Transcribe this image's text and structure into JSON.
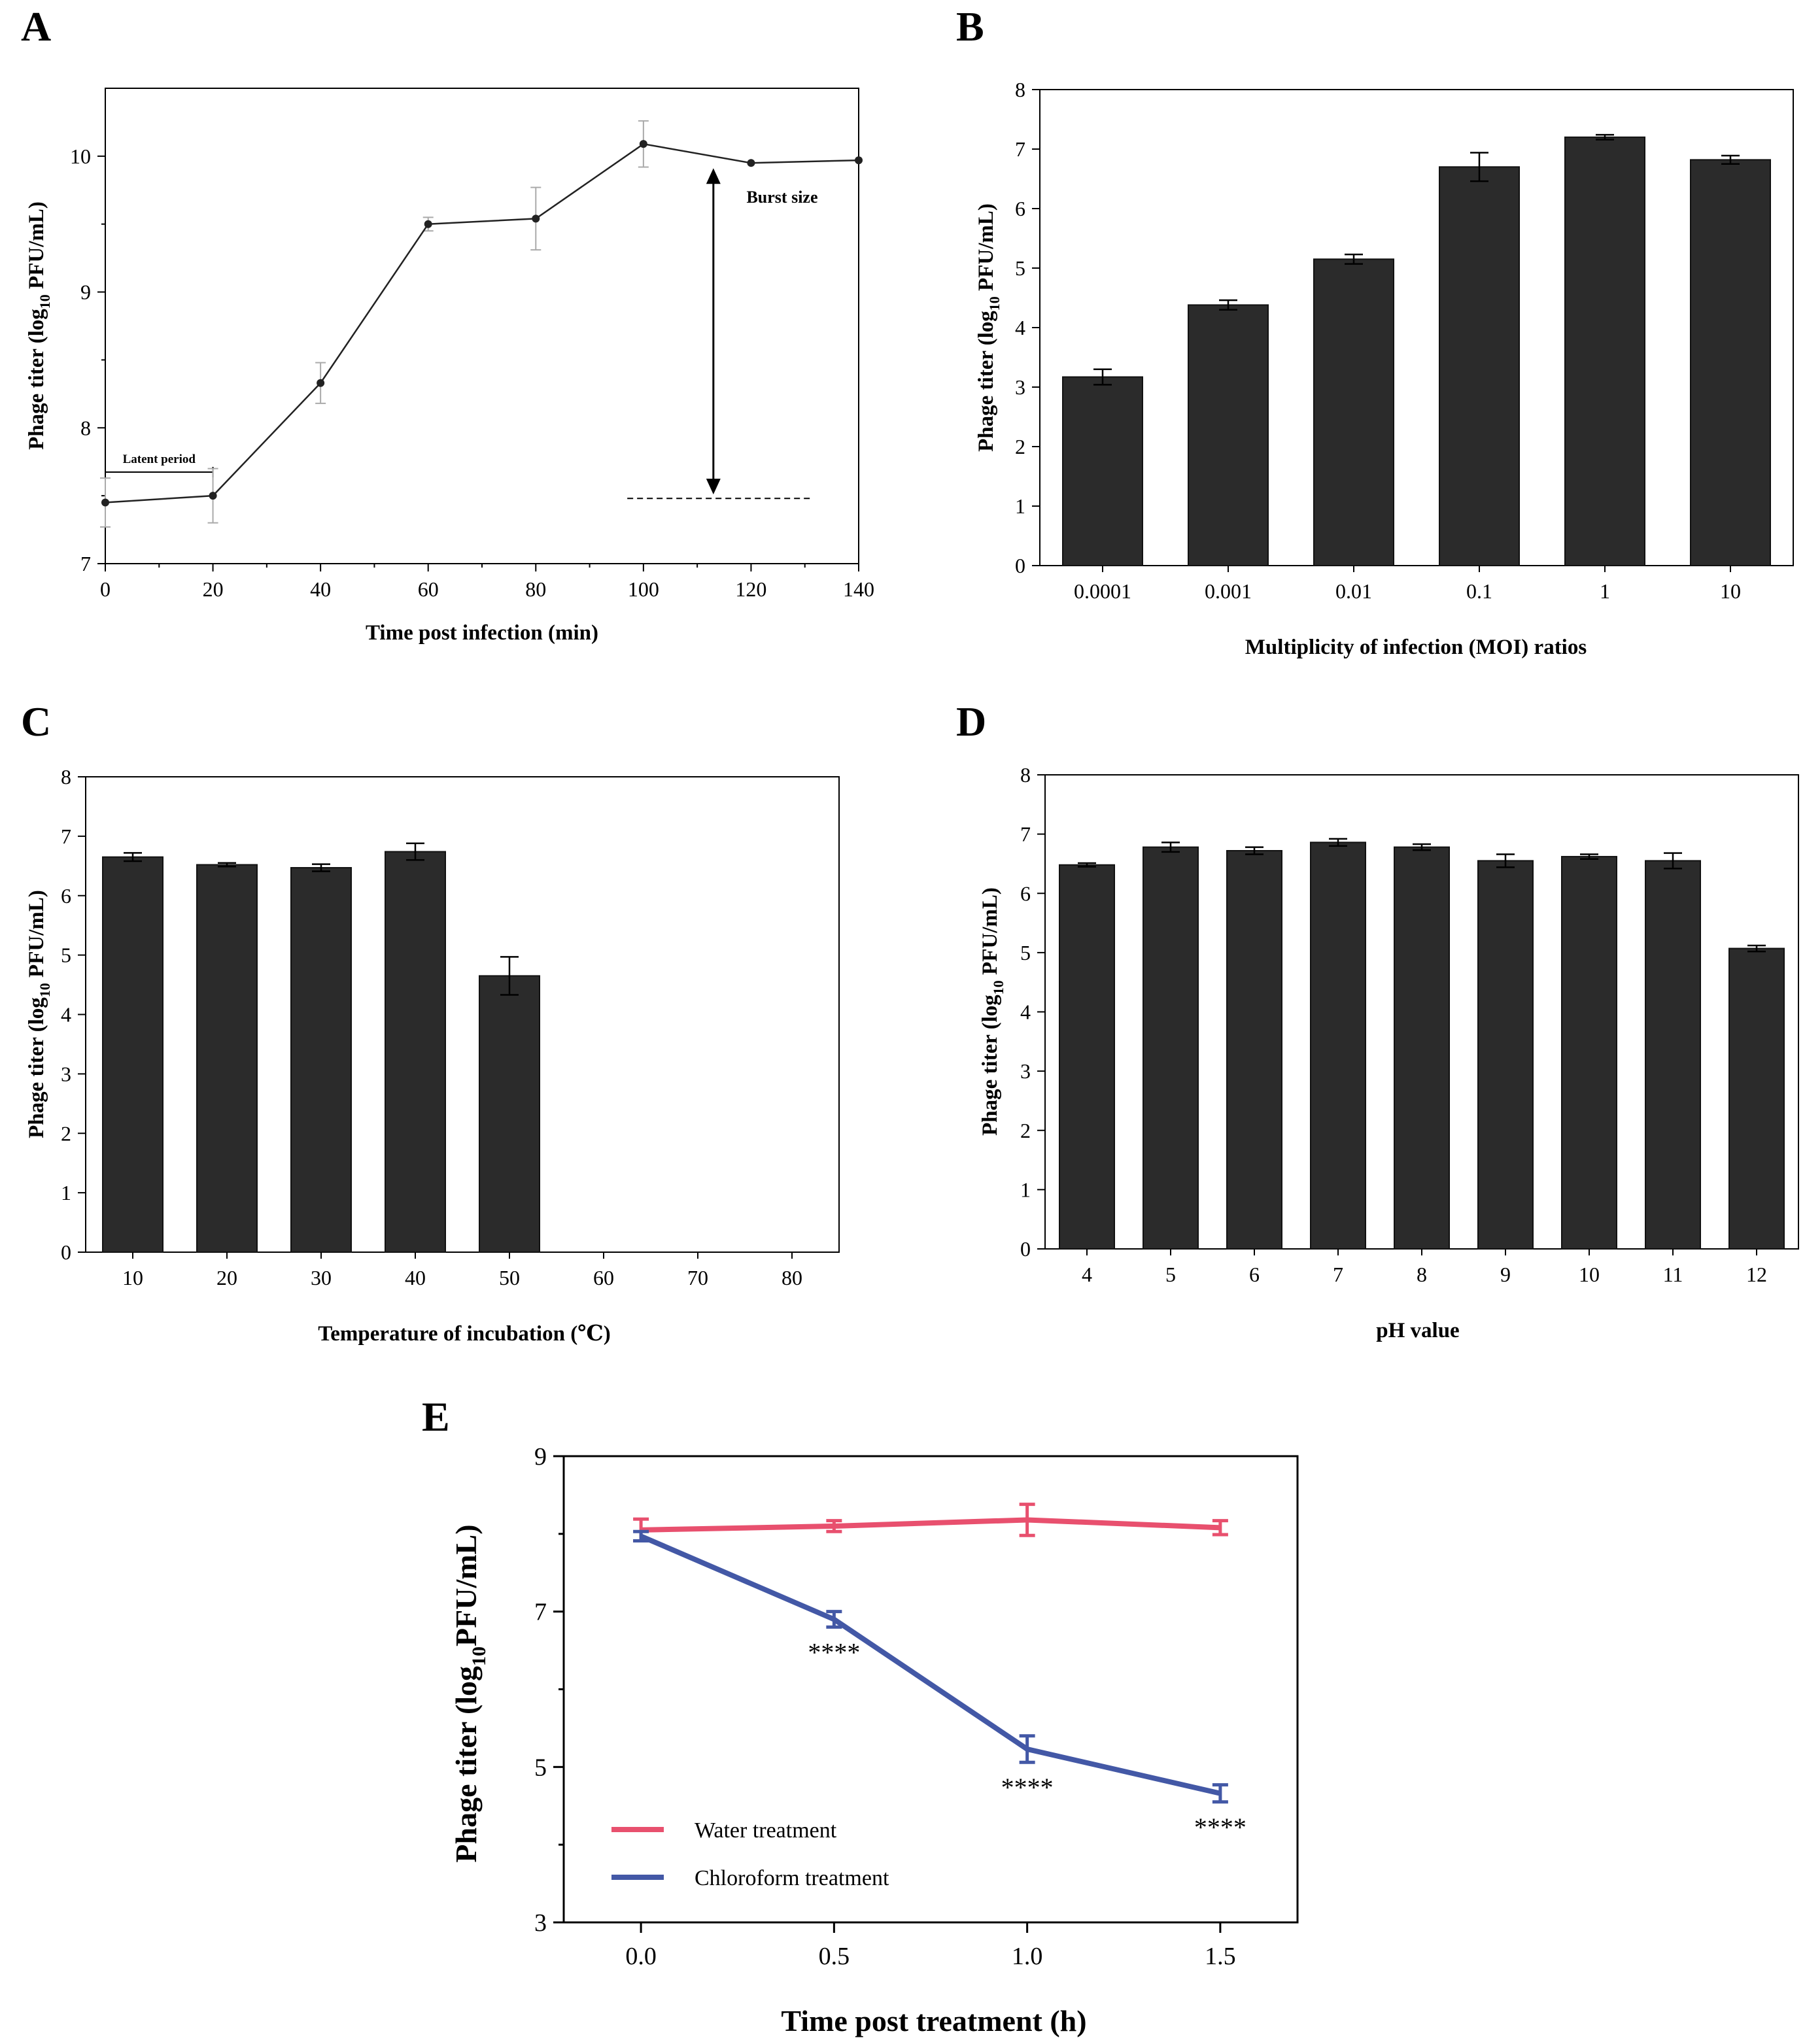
{
  "chart_data": [
    {
      "panel": "A",
      "type": "line",
      "xlabel": "Time post infection (min)",
      "ylabel_main": "Phage titer (log",
      "ylabel_sub": "10",
      "ylabel_tail": " PFU/mL)",
      "xlim": [
        0,
        140
      ],
      "ylim": [
        7,
        10.5
      ],
      "xticks": [
        0,
        20,
        40,
        60,
        80,
        100,
        120,
        140
      ],
      "yticks": [
        7,
        8,
        9,
        10
      ],
      "x": [
        0,
        20,
        40,
        60,
        80,
        100,
        120,
        140
      ],
      "y": [
        7.45,
        7.5,
        8.33,
        9.5,
        9.54,
        10.09,
        9.95,
        9.97
      ],
      "err": [
        0.18,
        0.2,
        0.15,
        0.05,
        0.23,
        0.17,
        0.0,
        0.0
      ],
      "annotations": {
        "latent_period": "Latent period",
        "burst_size": "Burst size",
        "latent_start": 0,
        "latent_end": 20,
        "burst_x": 113,
        "burst_low": 7.5,
        "burst_high": 9.95,
        "baseline": 7.48,
        "baseline_from": 97,
        "baseline_to": 131
      }
    },
    {
      "panel": "B",
      "type": "bar",
      "xlabel": "Multiplicity of infection (MOI) ratios",
      "ylabel_main": "Phage titer (log",
      "ylabel_sub": "10",
      "ylabel_tail": " PFU/mL)",
      "ylim": [
        0,
        8
      ],
      "yticks": [
        0,
        1,
        2,
        3,
        4,
        5,
        6,
        7,
        8
      ],
      "categories": [
        "0.0001",
        "0.001",
        "0.01",
        "0.1",
        "1",
        "10"
      ],
      "values": [
        3.17,
        4.38,
        5.15,
        6.7,
        7.2,
        6.82
      ],
      "err": [
        0.13,
        0.08,
        0.08,
        0.24,
        0.04,
        0.07
      ]
    },
    {
      "panel": "C",
      "type": "bar",
      "xlabel": "Temperature of incubation (℃)",
      "ylabel_main": "Phage titer (log",
      "ylabel_sub": "10",
      "ylabel_tail": " PFU/mL)",
      "ylim": [
        0,
        8
      ],
      "yticks": [
        0,
        1,
        2,
        3,
        4,
        5,
        6,
        7,
        8
      ],
      "categories": [
        "10",
        "20",
        "30",
        "40",
        "50",
        "60",
        "70",
        "80"
      ],
      "values": [
        6.65,
        6.52,
        6.47,
        6.74,
        4.65,
        0,
        0,
        0
      ],
      "err": [
        0.07,
        0.03,
        0.06,
        0.14,
        0.32,
        0,
        0,
        0
      ]
    },
    {
      "panel": "D",
      "type": "bar",
      "xlabel": "pH value",
      "ylabel_main": "Phage titer (log",
      "ylabel_sub": "10",
      "ylabel_tail": " PFU/mL)",
      "ylim": [
        0,
        8
      ],
      "yticks": [
        0,
        1,
        2,
        3,
        4,
        5,
        6,
        7,
        8
      ],
      "categories": [
        "4",
        "5",
        "6",
        "7",
        "8",
        "9",
        "10",
        "11",
        "12"
      ],
      "values": [
        6.48,
        6.78,
        6.72,
        6.86,
        6.78,
        6.55,
        6.62,
        6.55,
        5.07
      ],
      "err": [
        0.03,
        0.08,
        0.06,
        0.06,
        0.05,
        0.11,
        0.04,
        0.13,
        0.05
      ]
    },
    {
      "panel": "E",
      "type": "line",
      "xlabel": "Time post treatment  (h)",
      "ylabel_main": "Phage titer (log",
      "ylabel_sub": "10",
      "ylabel_tail": "PFU/mL)",
      "xlim": [
        -0.2,
        1.7
      ],
      "ylim": [
        3,
        9
      ],
      "xticks": [
        "0.0",
        "0.5",
        "1.0",
        "1.5"
      ],
      "xtick_values": [
        0,
        0.5,
        1.0,
        1.5
      ],
      "yticks": [
        3,
        5,
        7,
        9
      ],
      "series": [
        {
          "name": "Water treatment",
          "color": "#e8506e",
          "x": [
            0,
            0.5,
            1.0,
            1.5
          ],
          "y": [
            8.05,
            8.1,
            8.18,
            8.08
          ],
          "err": [
            0.14,
            0.07,
            0.2,
            0.09
          ]
        },
        {
          "name": "Chloroform treatment",
          "color": "#4358a6",
          "x": [
            0,
            0.5,
            1.0,
            1.5
          ],
          "y": [
            7.97,
            6.9,
            5.23,
            4.66
          ],
          "err": [
            0.06,
            0.1,
            0.17,
            0.11
          ],
          "significance": [
            "",
            "****",
            "****",
            "****"
          ]
        }
      ]
    }
  ]
}
